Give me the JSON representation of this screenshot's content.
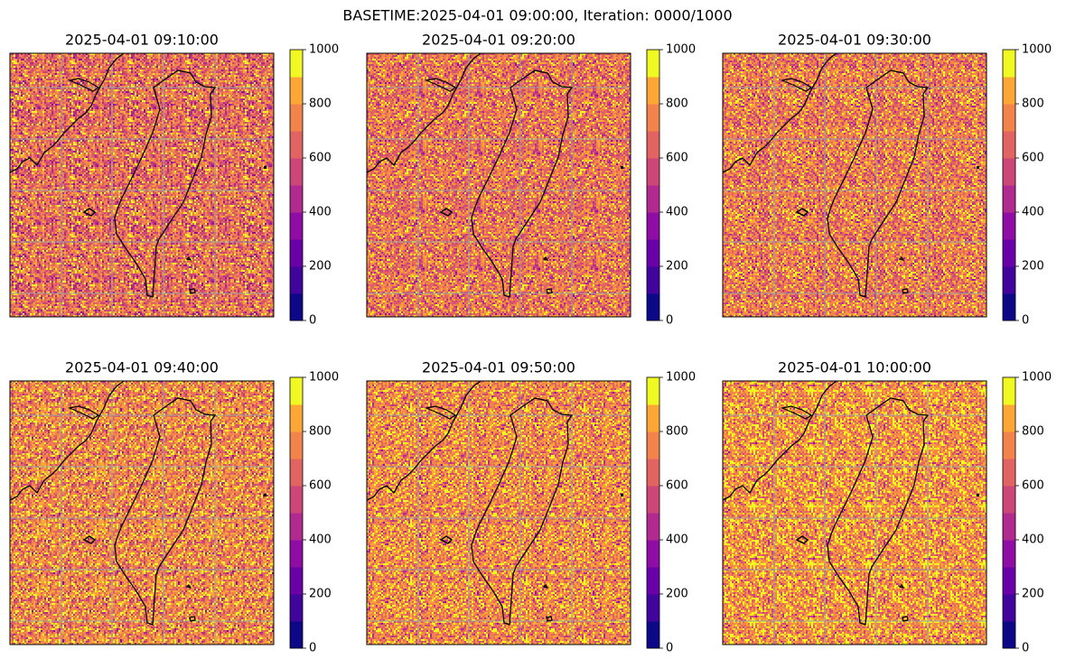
{
  "suptitle": "BASETIME:2025-04-01 09:00:00, Iteration: 0000/1000",
  "chart_data": [
    {
      "type": "map",
      "title": "2025-04-01 09:10:00",
      "clim": [
        0,
        1000
      ],
      "cticks": [
        0,
        200,
        400,
        600,
        800,
        1000
      ],
      "colors": [
        "#0d0887",
        "#41049d",
        "#6a00a8",
        "#8f0da4",
        "#b12a90",
        "#cc4778",
        "#e16462",
        "#f2844b",
        "#fca636",
        "#f0f921"
      ]
    },
    {
      "type": "map",
      "title": "2025-04-01 09:20:00",
      "clim": [
        0,
        1000
      ],
      "cticks": [
        0,
        200,
        400,
        600,
        800,
        1000
      ],
      "colors": [
        "#0d0887",
        "#41049d",
        "#6a00a8",
        "#8f0da4",
        "#b12a90",
        "#cc4778",
        "#e16462",
        "#f2844b",
        "#fca636",
        "#f0f921"
      ]
    },
    {
      "type": "map",
      "title": "2025-04-01 09:30:00",
      "clim": [
        0,
        1000
      ],
      "cticks": [
        0,
        200,
        400,
        600,
        800,
        1000
      ],
      "colors": [
        "#0d0887",
        "#41049d",
        "#6a00a8",
        "#8f0da4",
        "#b12a90",
        "#cc4778",
        "#e16462",
        "#f2844b",
        "#fca636",
        "#f0f921"
      ]
    },
    {
      "type": "map",
      "title": "2025-04-01 09:40:00",
      "clim": [
        0,
        1000
      ],
      "cticks": [
        0,
        200,
        400,
        600,
        800,
        1000
      ],
      "colors": [
        "#0d0887",
        "#41049d",
        "#6a00a8",
        "#8f0da4",
        "#b12a90",
        "#cc4778",
        "#e16462",
        "#f2844b",
        "#fca636",
        "#f0f921"
      ]
    },
    {
      "type": "map",
      "title": "2025-04-01 09:50:00",
      "clim": [
        0,
        1000
      ],
      "cticks": [
        0,
        200,
        400,
        600,
        800,
        1000
      ],
      "colors": [
        "#0d0887",
        "#41049d",
        "#6a00a8",
        "#8f0da4",
        "#b12a90",
        "#cc4778",
        "#e16462",
        "#f2844b",
        "#fca636",
        "#f0f921"
      ]
    },
    {
      "type": "map",
      "title": "2025-04-01 10:00:00",
      "clim": [
        0,
        1000
      ],
      "cticks": [
        0,
        200,
        400,
        600,
        800,
        1000
      ],
      "colors": [
        "#0d0887",
        "#41049d",
        "#6a00a8",
        "#8f0da4",
        "#b12a90",
        "#cc4778",
        "#e16462",
        "#f2844b",
        "#fca636",
        "#f0f921"
      ]
    }
  ]
}
